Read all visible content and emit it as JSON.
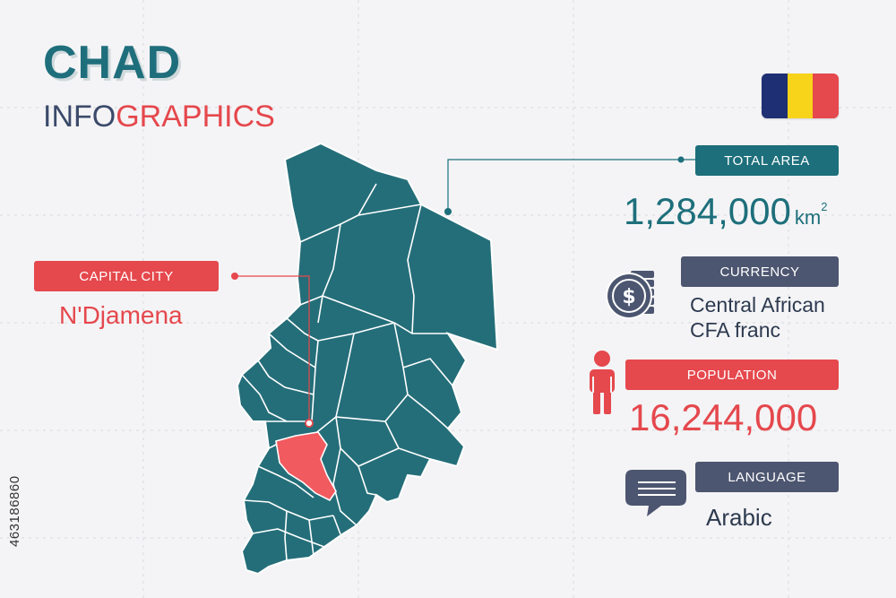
{
  "header": {
    "title": "CHAD",
    "subtitle_part1": "INFO",
    "subtitle_part2": "GRAPHICS"
  },
  "flag": {
    "colors": [
      "#1f2f73",
      "#f7d31a",
      "#e5484d"
    ]
  },
  "total_area": {
    "label": "TOTAL  AREA",
    "value": "1,284,000",
    "unit": "km",
    "unit_sup": "2"
  },
  "capital": {
    "label": "CAPITAL CITY",
    "value": "N'Djamena"
  },
  "currency": {
    "label": "CURRENCY",
    "value_line1": "Central African",
    "value_line2": "CFA franc",
    "icon": "coin-stack-icon",
    "icon_symbol": "$"
  },
  "population": {
    "label": "POPULATION",
    "value": "16,244,000",
    "icon": "person-icon"
  },
  "language": {
    "label": "LANGUAGE",
    "value": "Arabic",
    "icon": "speech-bubble-icon"
  },
  "watermark": {
    "id": "463186860"
  },
  "colors": {
    "teal": "#1d6f7b",
    "red": "#e5484d",
    "navy_label": "#4d5670",
    "dark_text": "#2d3a4f",
    "map_fill": "#246e79",
    "map_border": "#ffffff",
    "highlight": "#f15a5f"
  }
}
